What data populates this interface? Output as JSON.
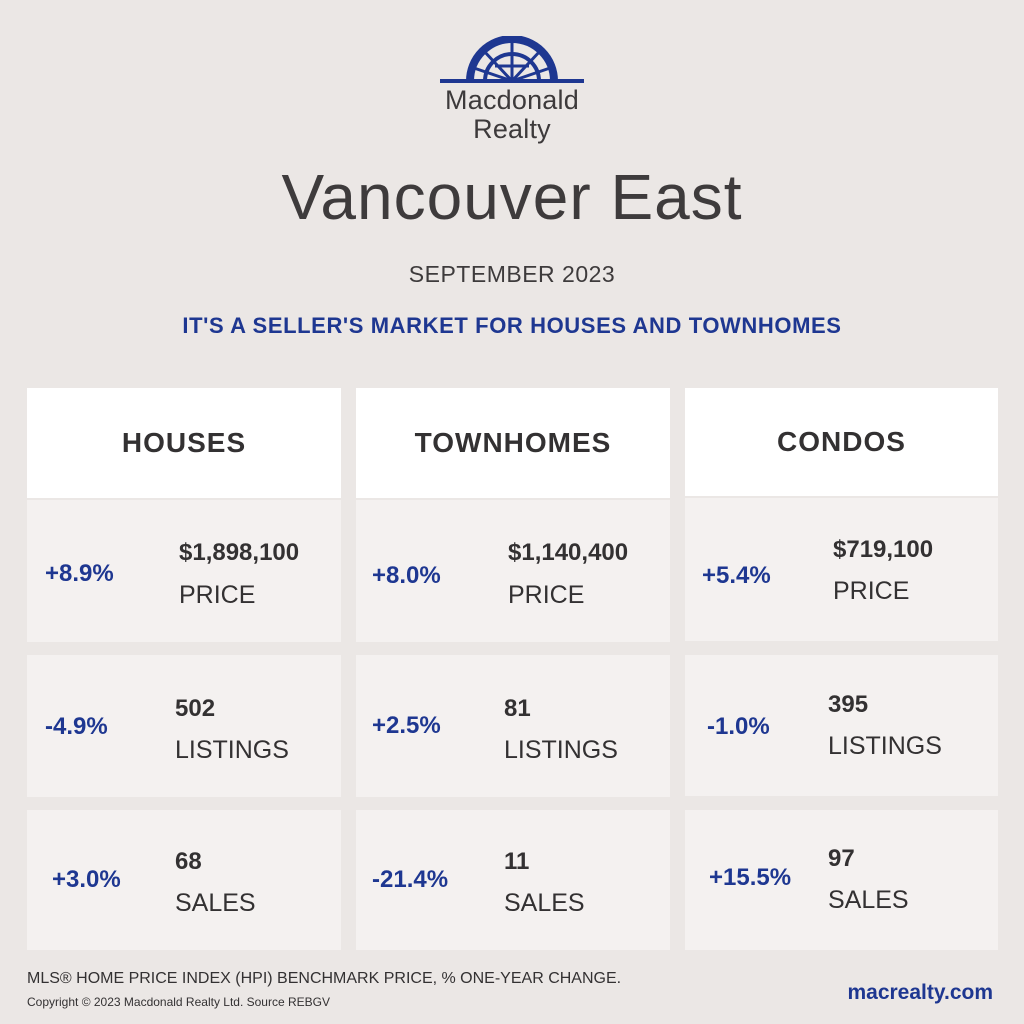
{
  "brand": {
    "line1": "Macdonald",
    "line2": "Realty"
  },
  "title": "Vancouver East",
  "month": "SEPTEMBER 2023",
  "headline": "IT'S A SELLER'S MARKET FOR HOUSES AND TOWNHOMES",
  "columns": [
    {
      "name": "HOUSES",
      "price": {
        "pct": "+8.9%",
        "value": "$1,898,100",
        "label": "PRICE"
      },
      "listings": {
        "pct": "-4.9%",
        "value": "502",
        "label": "LISTINGS"
      },
      "sales": {
        "pct": "+3.0%",
        "value": "68",
        "label": "SALES"
      }
    },
    {
      "name": "TOWNHOMES",
      "price": {
        "pct": "+8.0%",
        "value": "$1,140,400",
        "label": "PRICE"
      },
      "listings": {
        "pct": "+2.5%",
        "value": "81",
        "label": "LISTINGS"
      },
      "sales": {
        "pct": "-21.4%",
        "value": "11",
        "label": "SALES"
      }
    },
    {
      "name": "CONDOS",
      "price": {
        "pct": "+5.4%",
        "value": "$719,100",
        "label": "PRICE"
      },
      "listings": {
        "pct": "-1.0%",
        "value": "395",
        "label": "LISTINGS"
      },
      "sales": {
        "pct": "+15.5%",
        "value": "97",
        "label": "SALES"
      }
    }
  ],
  "footer": {
    "note": "MLS® HOME PRICE INDEX (HPI) BENCHMARK PRICE, % ONE-YEAR CHANGE.",
    "copyright": "Copyright © 2023 Macdonald Realty Ltd. Source REBGV",
    "website": "macrealty.com"
  },
  "colors": {
    "accent": "#1e3791",
    "text": "#333132",
    "background": "#ebe7e5"
  }
}
